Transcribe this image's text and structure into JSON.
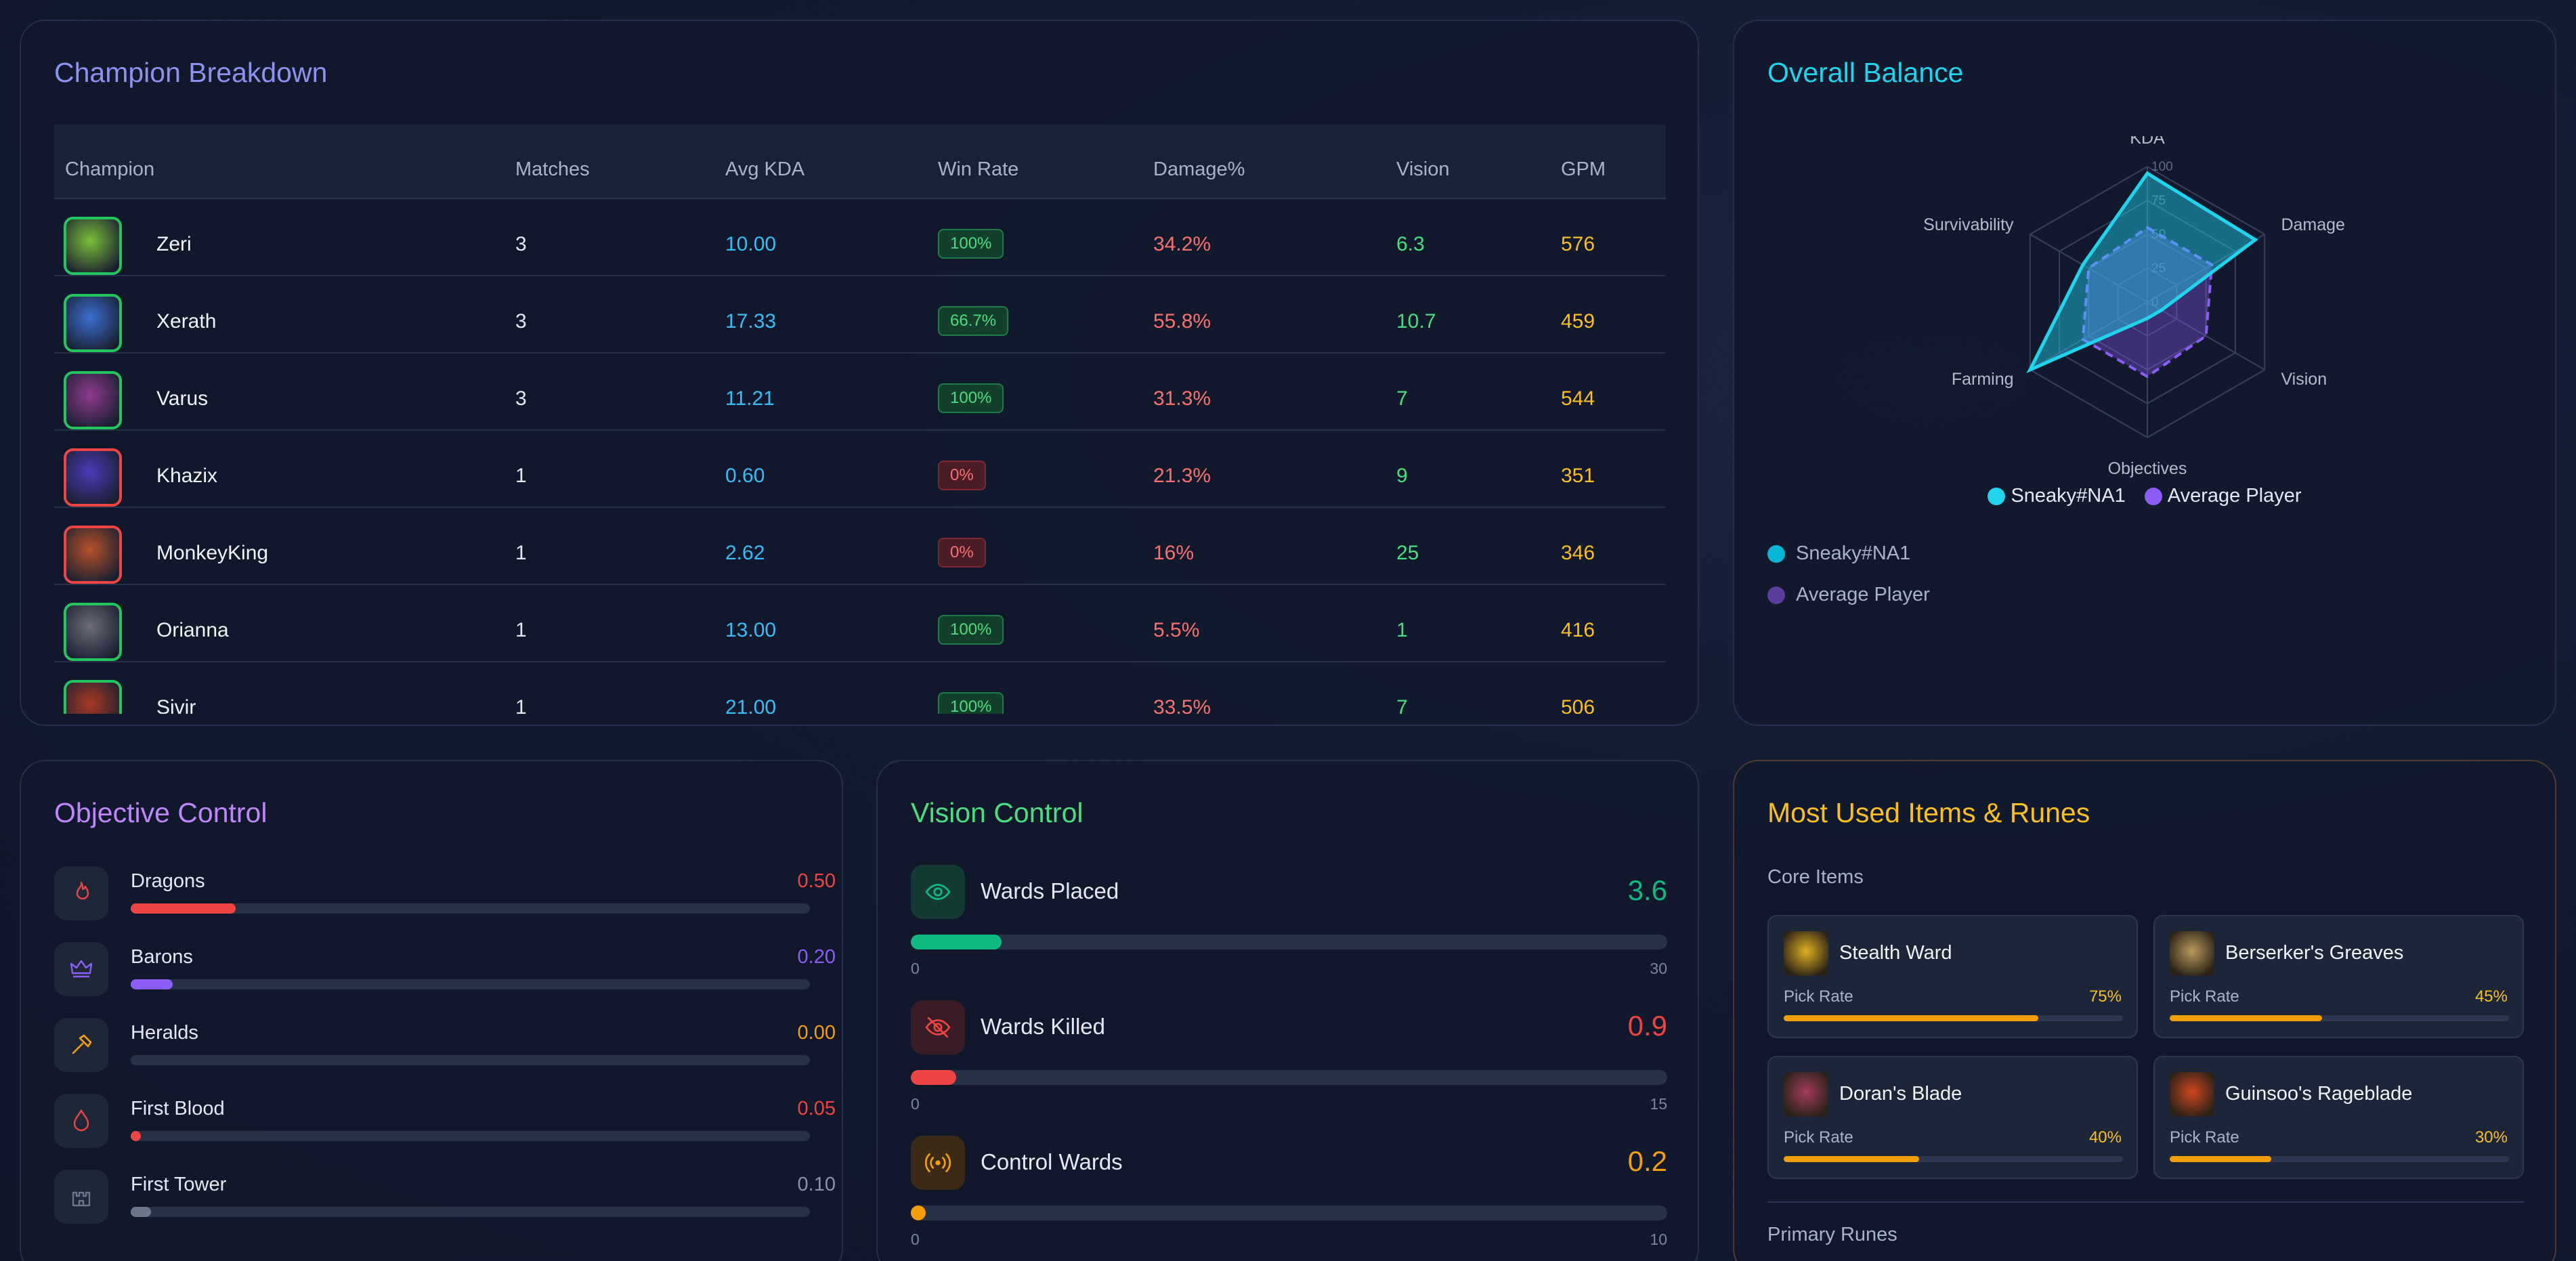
{
  "champion_breakdown": {
    "title": "Champion Breakdown",
    "columns": [
      "Champion",
      "Matches",
      "Avg KDA",
      "Win Rate",
      "Damage%",
      "Vision",
      "GPM"
    ],
    "rows": [
      {
        "name": "Zeri",
        "matches": "3",
        "kda": "10.00",
        "winrate": "100%",
        "win": true,
        "damage": "34.2%",
        "vision": "6.3",
        "gpm": "576",
        "color": "#7cbf3a"
      },
      {
        "name": "Xerath",
        "matches": "3",
        "kda": "17.33",
        "winrate": "66.7%",
        "win": true,
        "damage": "55.8%",
        "vision": "10.7",
        "gpm": "459",
        "color": "#3b6fd1"
      },
      {
        "name": "Varus",
        "matches": "3",
        "kda": "11.21",
        "winrate": "100%",
        "win": true,
        "damage": "31.3%",
        "vision": "7",
        "gpm": "544",
        "color": "#8e3a8f"
      },
      {
        "name": "Khazix",
        "matches": "1",
        "kda": "0.60",
        "winrate": "0%",
        "win": false,
        "damage": "21.3%",
        "vision": "9",
        "gpm": "351",
        "color": "#4b3bb8"
      },
      {
        "name": "MonkeyKing",
        "matches": "1",
        "kda": "2.62",
        "winrate": "0%",
        "win": false,
        "damage": "16%",
        "vision": "25",
        "gpm": "346",
        "color": "#b8522b"
      },
      {
        "name": "Orianna",
        "matches": "1",
        "kda": "13.00",
        "winrate": "100%",
        "win": true,
        "damage": "5.5%",
        "vision": "1",
        "gpm": "416",
        "color": "#6d6d7a"
      },
      {
        "name": "Sivir",
        "matches": "1",
        "kda": "21.00",
        "winrate": "100%",
        "win": true,
        "damage": "33.5%",
        "vision": "7",
        "gpm": "506",
        "color": "#a83a24"
      }
    ]
  },
  "overall_balance": {
    "title": "Overall Balance",
    "legend": [
      "Sneaky#NA1",
      "Average Player"
    ]
  },
  "chart_data": {
    "type": "radar",
    "axes": [
      "KDA",
      "Damage",
      "Vision",
      "Objectives",
      "Farming",
      "Survivability"
    ],
    "scale": [
      0,
      100
    ],
    "ticks": [
      "0",
      "25",
      "50",
      "75",
      "100"
    ],
    "series": [
      {
        "name": "Sneaky#NA1",
        "values": [
          95,
          92,
          12,
          12,
          100,
          55
        ],
        "color": "#22d3ee"
      },
      {
        "name": "Average Player",
        "values": [
          55,
          55,
          50,
          55,
          55,
          50
        ],
        "color": "#8b5cf6"
      }
    ]
  },
  "objective_control": {
    "title": "Objective Control",
    "items": [
      {
        "label": "Dragons",
        "value": "0.50",
        "fill": 0.155,
        "color": "#ef4444",
        "icon": "flame-icon"
      },
      {
        "label": "Barons",
        "value": "0.20",
        "fill": 0.062,
        "color": "#8b5cf6",
        "icon": "crown-icon"
      },
      {
        "label": "Heralds",
        "value": "0.00",
        "fill": 0,
        "color": "#f59e0b",
        "icon": "hammer-icon"
      },
      {
        "label": "First Blood",
        "value": "0.05",
        "fill": 0.015,
        "color": "#ef4444",
        "icon": "drop-icon"
      },
      {
        "label": "First Tower",
        "value": "0.10",
        "fill": 0.03,
        "color": "#6b7689",
        "icon": "castle-icon"
      }
    ]
  },
  "vision_control": {
    "title": "Vision Control",
    "items": [
      {
        "label": "Wards Placed",
        "value": "3.6",
        "min": "0",
        "max": "30",
        "fill": 0.12,
        "color": "#10b981",
        "icon": "eye-icon"
      },
      {
        "label": "Wards Killed",
        "value": "0.9",
        "min": "0",
        "max": "15",
        "fill": 0.06,
        "color": "#ef4444",
        "icon": "eye-off-icon"
      },
      {
        "label": "Control Wards",
        "value": "0.2",
        "min": "0",
        "max": "10",
        "fill": 0.02,
        "color": "#f59e0b",
        "icon": "broadcast-icon"
      }
    ]
  },
  "items_runes": {
    "title": "Most Used Items & Runes",
    "core_items_label": "Core Items",
    "pick_rate_label": "Pick Rate",
    "items": [
      {
        "name": "Stealth Ward",
        "pct": "75%",
        "fill": 0.75,
        "color": "#e0b020"
      },
      {
        "name": "Berserker's Greaves",
        "pct": "45%",
        "fill": 0.45,
        "color": "#b89b5a"
      },
      {
        "name": "Doran's Blade",
        "pct": "40%",
        "fill": 0.4,
        "color": "#a23c5a"
      },
      {
        "name": "Guinsoo's Rageblade",
        "pct": "30%",
        "fill": 0.3,
        "color": "#d0461f"
      }
    ],
    "primary_runes_label": "Primary Runes"
  }
}
